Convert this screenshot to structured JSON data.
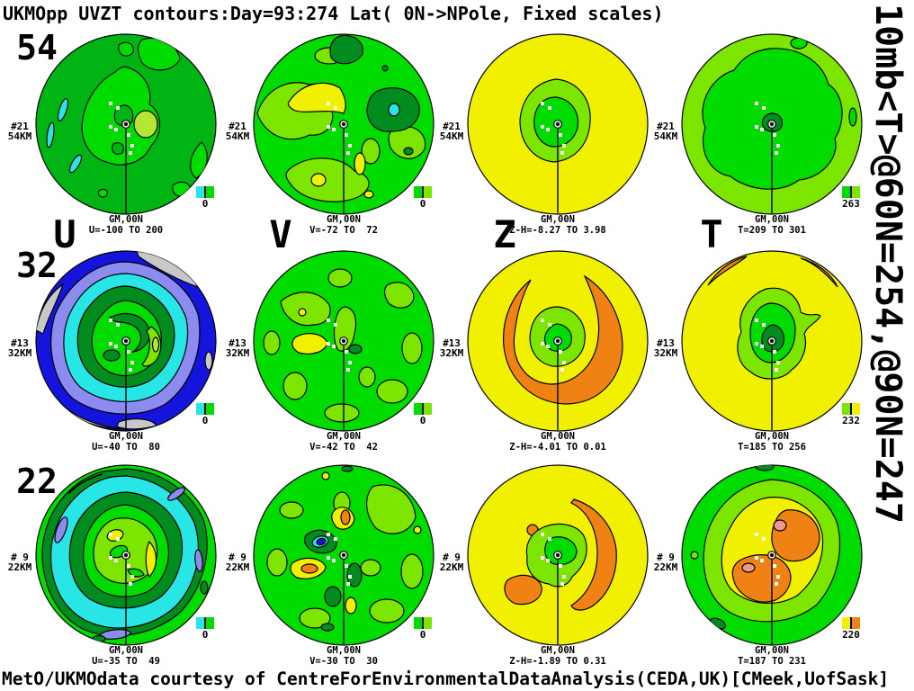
{
  "title": "UKMOpp UVZT contours:Day=93:274 Lat( 0N->NPole, Fixed scales)",
  "right_annotation": "10mb<T>@60N=254,@90N=247",
  "footer": "MetO/UKMOdata courtesy of CentreForEnvironmentalDataAnalysis(CEDA,UK)[CMeek,UofSask]",
  "columns": [
    "U",
    "V",
    "Z",
    "T"
  ],
  "rows": [
    "54",
    "32",
    "22"
  ],
  "palette": {
    "dark_green": "#008c1e",
    "mid_green": "#00b414",
    "bright_green": "#00dc00",
    "light_green": "#7ce600",
    "yellow_green": "#b4e632",
    "yellow": "#f0f000",
    "orange": "#f08214",
    "pink": "#f0968c",
    "cyan": "#28e6e6",
    "blue": "#1414dc",
    "violet": "#8c8cf0",
    "gray": "#c8c8c8"
  },
  "station_marks": [
    [
      -17,
      -23
    ],
    [
      -9,
      -18
    ],
    [
      -17,
      3
    ],
    [
      -11,
      6
    ],
    [
      3,
      12
    ],
    [
      7,
      24
    ],
    [
      5,
      32
    ]
  ],
  "panels": [
    {
      "station": "#21",
      "level": "54KM",
      "gm": "GM,00N",
      "range": "U=-100 TO 200",
      "legend": {
        "left": "#28e6e6",
        "right": "#00dc00",
        "value": "0"
      }
    },
    {
      "station": "#21",
      "level": "54KM",
      "gm": "GM,00N",
      "range": "V=-72 TO  72",
      "legend": {
        "left": "#00dc00",
        "right": "#7ce600",
        "value": "0"
      }
    },
    {
      "station": "#21",
      "level": "54KM",
      "gm": "GM,00N",
      "range": "Z-H=-8.27 TO 3.98",
      "legend": null
    },
    {
      "station": "#21",
      "level": "54KM",
      "gm": "GM,00N",
      "range": "T=209 TO 301",
      "legend": {
        "left": "#00dc00",
        "right": "#7ce600",
        "value": "263"
      }
    },
    {
      "station": "#13",
      "level": "32KM",
      "gm": "GM,00N",
      "range": "U=-40 TO  80",
      "legend": {
        "left": "#28e6e6",
        "right": "#00dc00",
        "value": "0"
      }
    },
    {
      "station": "#13",
      "level": "32KM",
      "gm": "GM,00N",
      "range": "V=-42 TO  42",
      "legend": {
        "left": "#00dc00",
        "right": "#7ce600",
        "value": "0"
      }
    },
    {
      "station": "#13",
      "level": "32KM",
      "gm": "GM,00N",
      "range": "Z-H=-4.01 TO 0.01",
      "legend": null
    },
    {
      "station": "#13",
      "level": "32KM",
      "gm": "GM,00N",
      "range": "T=185 TO 256",
      "legend": {
        "left": "#7ce600",
        "right": "#f0f000",
        "value": "232"
      }
    },
    {
      "station": "# 9",
      "level": "22KM",
      "gm": "GM,00N",
      "range": "U=-35 TO  49",
      "legend": {
        "left": "#28e6e6",
        "right": "#00dc00",
        "value": "0"
      }
    },
    {
      "station": "# 9",
      "level": "22KM",
      "gm": "GM,00N",
      "range": "V=-30 TO  30",
      "legend": {
        "left": "#00dc00",
        "right": "#7ce600",
        "value": "0"
      }
    },
    {
      "station": "# 9",
      "level": "22KM",
      "gm": "GM,00N",
      "range": "Z-H=-1.89 TO 0.31",
      "legend": null
    },
    {
      "station": "# 9",
      "level": "22KM",
      "gm": "GM,00N",
      "range": "T=187 TO 231",
      "legend": {
        "left": "#f0f000",
        "right": "#f08214",
        "value": "220"
      }
    }
  ],
  "chart_data": [
    {
      "type": "contour",
      "variable": "U",
      "level_km": 54,
      "level_index": 21,
      "projection": "polar 0N->NPole",
      "range": [
        -100,
        200
      ],
      "legend_value": 0
    },
    {
      "type": "contour",
      "variable": "V",
      "level_km": 54,
      "level_index": 21,
      "projection": "polar 0N->NPole",
      "range": [
        -72,
        72
      ],
      "legend_value": 0
    },
    {
      "type": "contour",
      "variable": "Z-H",
      "level_km": 54,
      "level_index": 21,
      "projection": "polar 0N->NPole",
      "range": [
        -8.27,
        3.98
      ],
      "legend_value": null
    },
    {
      "type": "contour",
      "variable": "T",
      "level_km": 54,
      "level_index": 21,
      "projection": "polar 0N->NPole",
      "range": [
        209,
        301
      ],
      "legend_value": 263
    },
    {
      "type": "contour",
      "variable": "U",
      "level_km": 32,
      "level_index": 13,
      "projection": "polar 0N->NPole",
      "range": [
        -40,
        80
      ],
      "legend_value": 0
    },
    {
      "type": "contour",
      "variable": "V",
      "level_km": 32,
      "level_index": 13,
      "projection": "polar 0N->NPole",
      "range": [
        -42,
        42
      ],
      "legend_value": 0
    },
    {
      "type": "contour",
      "variable": "Z-H",
      "level_km": 32,
      "level_index": 13,
      "projection": "polar 0N->NPole",
      "range": [
        -4.01,
        0.01
      ],
      "legend_value": null
    },
    {
      "type": "contour",
      "variable": "T",
      "level_km": 32,
      "level_index": 13,
      "projection": "polar 0N->NPole",
      "range": [
        185,
        256
      ],
      "legend_value": 232
    },
    {
      "type": "contour",
      "variable": "U",
      "level_km": 22,
      "level_index": 9,
      "projection": "polar 0N->NPole",
      "range": [
        -35,
        49
      ],
      "legend_value": 0
    },
    {
      "type": "contour",
      "variable": "V",
      "level_km": 22,
      "level_index": 9,
      "projection": "polar 0N->NPole",
      "range": [
        -30,
        30
      ],
      "legend_value": 0
    },
    {
      "type": "contour",
      "variable": "Z-H",
      "level_km": 22,
      "level_index": 9,
      "projection": "polar 0N->NPole",
      "range": [
        -1.89,
        0.31
      ],
      "legend_value": null
    },
    {
      "type": "contour",
      "variable": "T",
      "level_km": 22,
      "level_index": 9,
      "projection": "polar 0N->NPole",
      "range": [
        187,
        231
      ],
      "legend_value": 220
    }
  ]
}
